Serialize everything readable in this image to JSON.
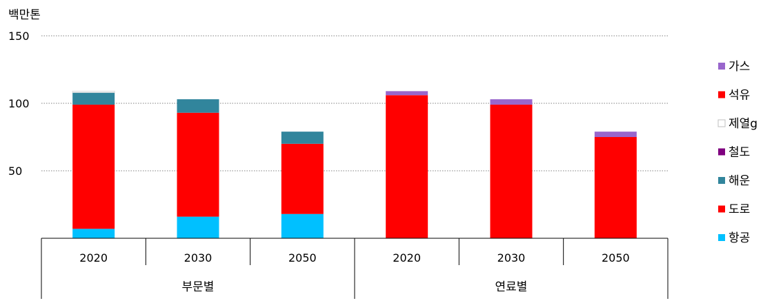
{
  "chart_data": {
    "type": "bar",
    "stacked": true,
    "unit_label": "백만톤",
    "yticks": [
      50,
      100,
      150
    ],
    "ylim": [
      0,
      150
    ],
    "grid": true,
    "legend_position": "right",
    "groups": [
      {
        "label": "부문별",
        "categories": [
          "2020",
          "2030",
          "2050"
        ]
      },
      {
        "label": "연료별",
        "categories": [
          "2020",
          "2030",
          "2050"
        ]
      }
    ],
    "categories": [
      "2020",
      "2030",
      "2050",
      "2020",
      "2030",
      "2050"
    ],
    "series": [
      {
        "name": "항공",
        "color": "#00c0ff",
        "values": [
          7,
          16,
          18,
          0,
          0,
          0
        ]
      },
      {
        "name": "도로",
        "color": "#ff0000",
        "values": [
          92,
          77,
          52,
          0,
          0,
          0
        ]
      },
      {
        "name": "해운",
        "color": "#31859c",
        "values": [
          9,
          10,
          9,
          0,
          0,
          0
        ]
      },
      {
        "name": "철도",
        "color": "#7f007f",
        "values": [
          0,
          0,
          0,
          0,
          0,
          0
        ]
      },
      {
        "name": "제열g",
        "color": "#ffffff",
        "values": [
          1,
          0,
          0,
          0,
          0,
          0
        ]
      },
      {
        "name": "석유",
        "color": "#ff0000",
        "values": [
          0,
          0,
          0,
          106,
          99,
          75
        ]
      },
      {
        "name": "가스",
        "color": "#9966cc",
        "values": [
          0,
          0,
          0,
          3,
          4,
          4
        ]
      }
    ],
    "legend_order": [
      "가스",
      "석유",
      "제열g",
      "철도",
      "해운",
      "도로",
      "항공"
    ]
  }
}
